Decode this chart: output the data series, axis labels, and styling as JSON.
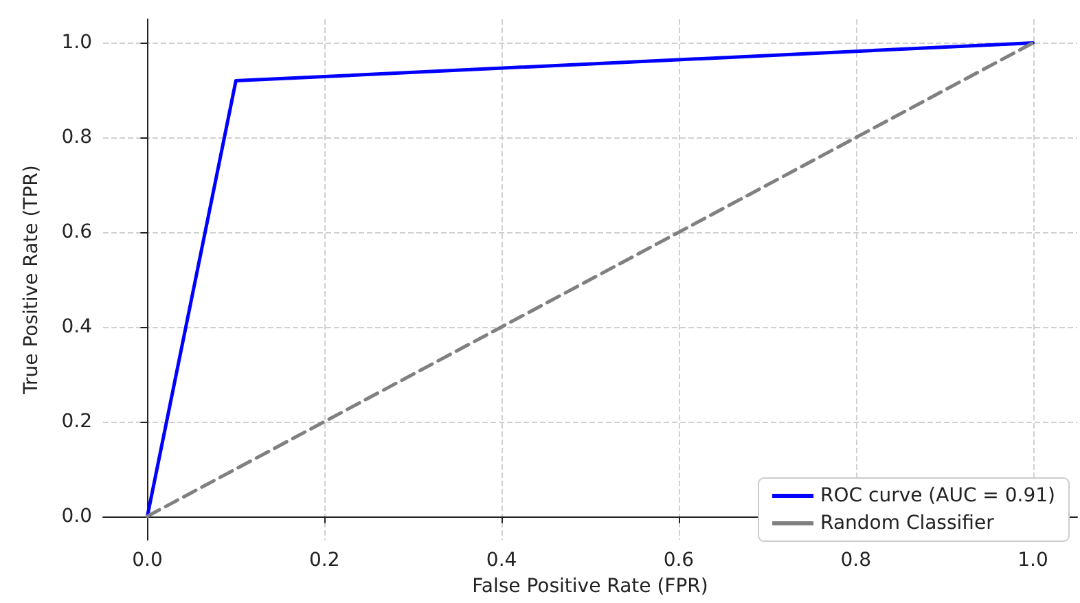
{
  "chart_data": {
    "type": "line",
    "xlabel": "False Positive Rate (FPR)",
    "ylabel": "True Positive Rate (TPR)",
    "series": [
      {
        "name": "ROC curve (AUC = 0.91)",
        "color": "#0000ff",
        "x": [
          0,
          0.1,
          1
        ],
        "values": [
          0,
          0.92,
          1
        ],
        "line_style": "solid"
      },
      {
        "name": "Random Classifier",
        "color": "#808080",
        "x": [
          0,
          1
        ],
        "values": [
          0,
          1
        ],
        "line_style": "dashed"
      }
    ],
    "xlim": [
      -0.05,
      1.05
    ],
    "ylim": [
      -0.05,
      1.05
    ],
    "xticks": [
      {
        "value": 0,
        "label": "0.0"
      },
      {
        "value": 0.2,
        "label": "0.2"
      },
      {
        "value": 0.4,
        "label": "0.4"
      },
      {
        "value": 0.6,
        "label": "0.6"
      },
      {
        "value": 0.8,
        "label": "0.8"
      },
      {
        "value": 1,
        "label": "1.0"
      }
    ],
    "yticks": [
      {
        "value": 0,
        "label": "0.0"
      },
      {
        "value": 0.2,
        "label": "0.2"
      },
      {
        "value": 0.4,
        "label": "0.4"
      },
      {
        "value": 0.6,
        "label": "0.6"
      },
      {
        "value": 0.8,
        "label": "0.8"
      },
      {
        "value": 1,
        "label": "1.0"
      }
    ],
    "grid": true,
    "legend": "bottom right",
    "marker": "none"
  }
}
